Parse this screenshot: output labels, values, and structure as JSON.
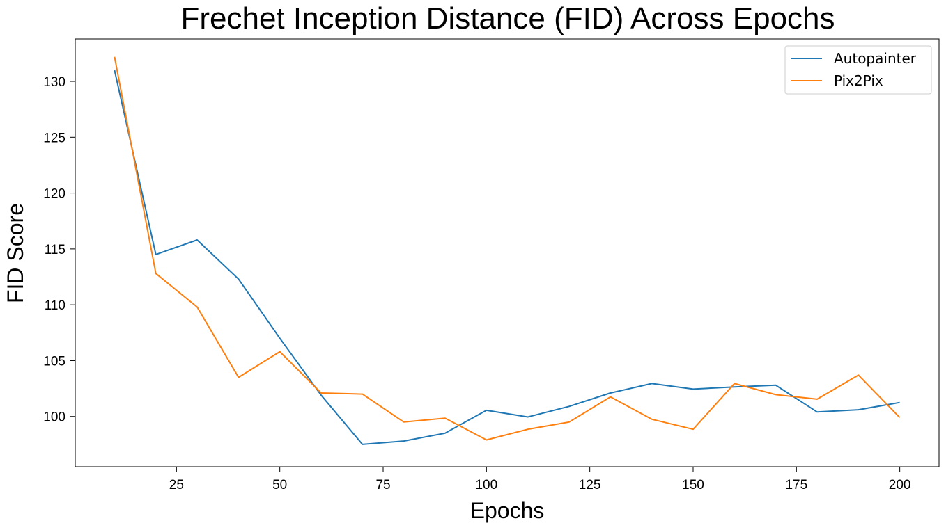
{
  "chart_data": {
    "type": "line",
    "title": "Frechet Inception Distance (FID) Across Epochs",
    "xlabel": "Epochs",
    "ylabel": "FID Score",
    "x": [
      10,
      20,
      30,
      40,
      50,
      60,
      70,
      80,
      90,
      100,
      110,
      120,
      130,
      140,
      150,
      160,
      170,
      180,
      190,
      200
    ],
    "series": [
      {
        "name": "Autopainter",
        "color": "#1f77b4",
        "values": [
          131.0,
          114.5,
          115.8,
          112.3,
          107.0,
          101.9,
          97.5,
          97.8,
          98.5,
          100.55,
          99.95,
          100.9,
          102.1,
          102.95,
          102.45,
          102.65,
          102.8,
          100.4,
          100.6,
          101.25
        ]
      },
      {
        "name": "Pix2Pix",
        "color": "#ff7f0e",
        "values": [
          132.2,
          112.8,
          109.8,
          103.5,
          105.8,
          102.1,
          102.0,
          99.5,
          99.85,
          97.9,
          98.85,
          99.5,
          101.75,
          99.75,
          98.85,
          102.95,
          101.95,
          101.55,
          103.7,
          99.9
        ]
      }
    ],
    "xticks": [
      25,
      50,
      75,
      100,
      125,
      150,
      175,
      200
    ],
    "yticks": [
      100,
      105,
      110,
      115,
      120,
      125,
      130
    ],
    "xlim": [
      0.5,
      209.5
    ],
    "ylim": [
      95.5,
      133.8
    ],
    "grid": false,
    "legend_position": "top-right"
  }
}
